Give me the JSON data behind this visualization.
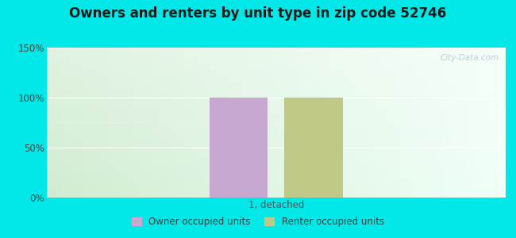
{
  "title": "Owners and renters by unit type in zip code 52746",
  "categories": [
    "1, detached"
  ],
  "owner_values": [
    100
  ],
  "renter_values": [
    100
  ],
  "owner_color": "#c8a8d0",
  "renter_color": "#c0c888",
  "ylim": [
    0,
    150
  ],
  "yticks": [
    0,
    50,
    100,
    150
  ],
  "ytick_labels": [
    "0%",
    "50%",
    "100%",
    "150%"
  ],
  "background_color": "#00e8e8",
  "watermark": "City-Data.com",
  "legend_owner": "Owner occupied units",
  "legend_renter": "Renter occupied units",
  "title_fontsize": 12,
  "bar_width": 0.28,
  "plot_left_color": "#d0ecd0",
  "plot_right_color": "#f8fffc"
}
